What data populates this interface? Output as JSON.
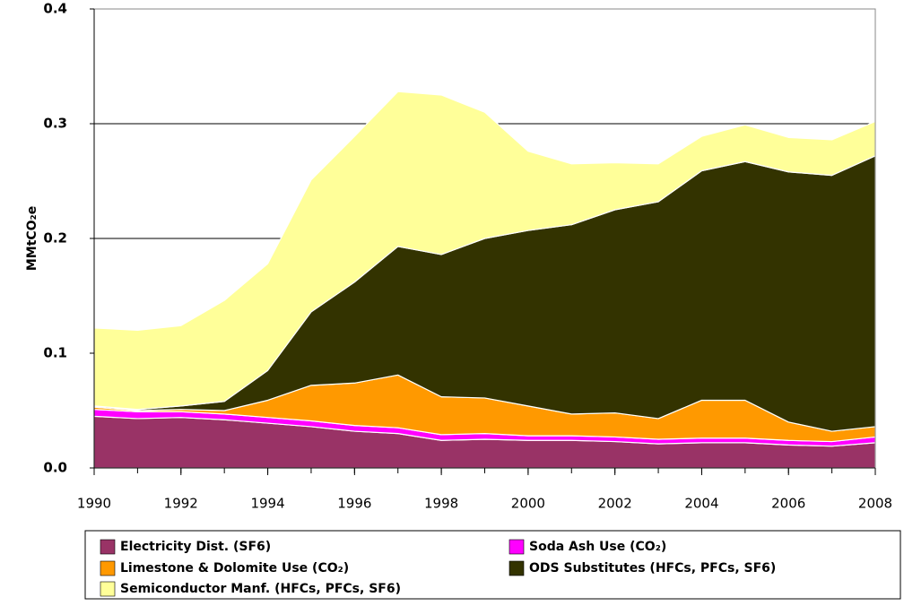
{
  "chart_data": {
    "type": "stacked-area",
    "y_label": "MMtCO₂e",
    "x": [
      1990,
      1991,
      1992,
      1993,
      1994,
      1995,
      1996,
      1997,
      1998,
      1999,
      2000,
      2001,
      2002,
      2003,
      2004,
      2005,
      2006,
      2007,
      2008
    ],
    "xlim": [
      1990,
      2008
    ],
    "xticks": [
      1990,
      1992,
      1994,
      1996,
      1998,
      2000,
      2002,
      2004,
      2006,
      2008
    ],
    "ylim": [
      0,
      0.4
    ],
    "yticks": [
      {
        "value": 0,
        "label": "0.0"
      },
      0.1,
      0.2,
      0.3,
      0.4
    ],
    "grid": true,
    "series": [
      {
        "name": "Electricity Dist. (SF6)",
        "color": "#993366",
        "values": [
          0.045,
          0.043,
          0.044,
          0.042,
          0.039,
          0.036,
          0.032,
          0.03,
          0.024,
          0.025,
          0.024,
          0.024,
          0.023,
          0.021,
          0.022,
          0.022,
          0.02,
          0.019,
          0.022
        ]
      },
      {
        "name": "Soda Ash Use (CO₂)",
        "color": "#ff00ff",
        "values": [
          0.006,
          0.006,
          0.005,
          0.005,
          0.005,
          0.005,
          0.005,
          0.005,
          0.005,
          0.005,
          0.004,
          0.004,
          0.004,
          0.004,
          0.004,
          0.004,
          0.004,
          0.004,
          0.005
        ]
      },
      {
        "name": "Limestone & Dolomite Use (CO₂)",
        "color": "#ff9900",
        "values": [
          0.002,
          0.001,
          0.002,
          0.003,
          0.015,
          0.031,
          0.037,
          0.046,
          0.033,
          0.031,
          0.026,
          0.019,
          0.021,
          0.018,
          0.033,
          0.033,
          0.016,
          0.009,
          0.009
        ]
      },
      {
        "name": "ODS Substitutes (HFCs, PFCs, SF6)",
        "color": "#333300",
        "values": [
          0.001,
          0.001,
          0.003,
          0.008,
          0.026,
          0.064,
          0.088,
          0.112,
          0.124,
          0.139,
          0.153,
          0.165,
          0.177,
          0.189,
          0.2,
          0.208,
          0.218,
          0.223,
          0.236
        ]
      },
      {
        "name": "Semiconductor Manf. (HFCs, PFCs, SF6)",
        "color": "#ffff99",
        "values": [
          0.068,
          0.069,
          0.07,
          0.088,
          0.093,
          0.115,
          0.127,
          0.135,
          0.139,
          0.11,
          0.069,
          0.053,
          0.041,
          0.033,
          0.03,
          0.032,
          0.03,
          0.031,
          0.03
        ]
      }
    ]
  }
}
